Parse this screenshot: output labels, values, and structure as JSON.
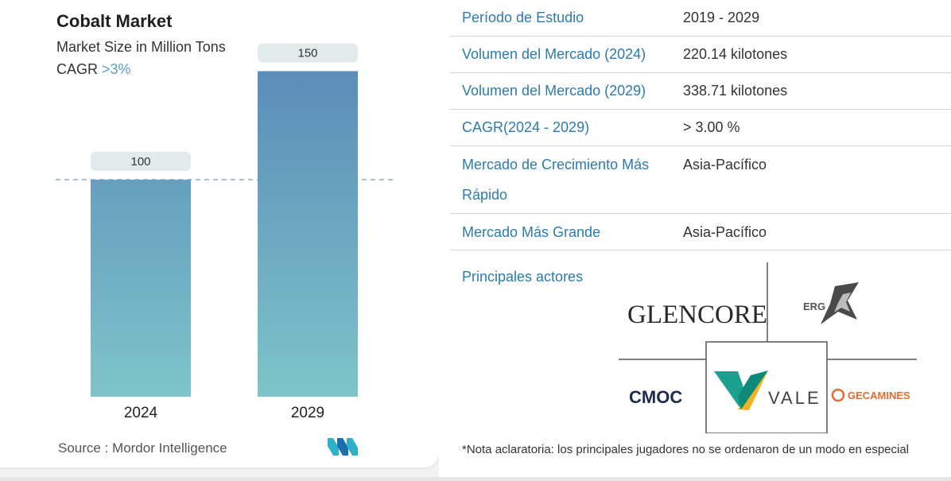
{
  "chart": {
    "title": "Cobalt Market",
    "subtitle": "Market Size in Million Tons",
    "cagr_label": "CAGR",
    "cagr_value": ">3%",
    "source": "Source :  Mordor Intelligence"
  },
  "chart_data": {
    "type": "bar",
    "categories": [
      "2024",
      "2029"
    ],
    "values": [
      100,
      150
    ],
    "value_labels": [
      "100",
      "150"
    ],
    "title": "Cobalt Market",
    "subtitle": "Market Size in Million Tons",
    "reference_line": 100,
    "colors": {
      "bar_top": "#5b8db9",
      "bar_bottom": "#7ec4c9",
      "label_bg": "#e2eaec",
      "dash": "#6f9cc2"
    }
  },
  "table": {
    "rows": [
      {
        "key": "Período de Estudio",
        "value": "2019 - 2029"
      },
      {
        "key": "Volumen del Mercado (2024)",
        "value": "220.14 kilotones"
      },
      {
        "key": "Volumen del Mercado (2029)",
        "value": "338.71 kilotones"
      },
      {
        "key": "CAGR(2024 - 2029)",
        "value": "> 3.00 %"
      },
      {
        "key": "Mercado de Crecimiento Más",
        "key2": "Rápido",
        "value": "Asia-Pacífico"
      },
      {
        "key": "Mercado Más Grande",
        "value": "Asia-Pacífico"
      }
    ]
  },
  "players": {
    "title": "Principales actores",
    "logos": [
      "GLENCORE",
      "ERG",
      "CMOC",
      "VALE",
      "GECAMINES"
    ],
    "note": "*Nota aclaratoria: los principales jugadores no se ordenaron de un modo en especial"
  }
}
